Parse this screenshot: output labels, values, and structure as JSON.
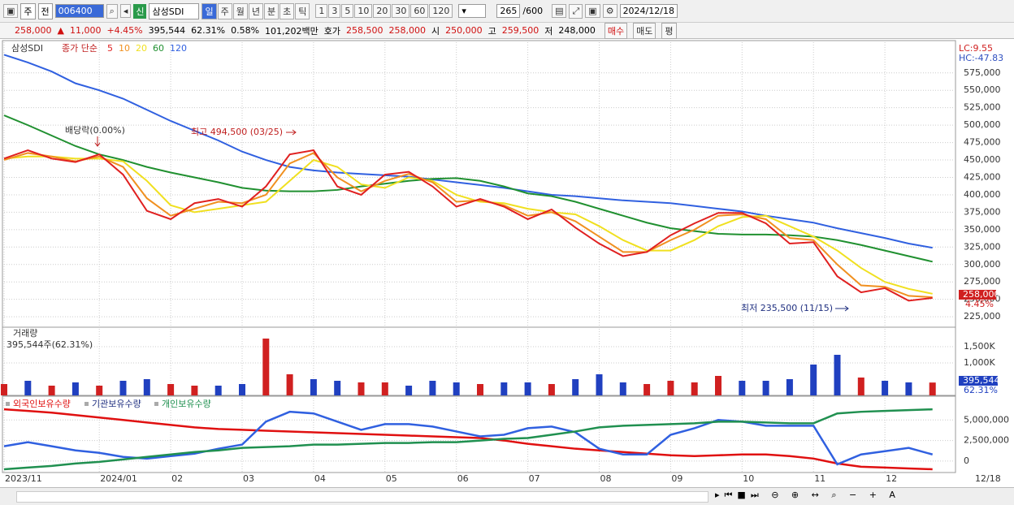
{
  "toolbar": {
    "type_a": "주",
    "type_b": "전",
    "code": "006400",
    "badge": "신",
    "name": "삼성SDI",
    "periods": [
      "일",
      "주",
      "월",
      "년",
      "분",
      "초",
      "틱"
    ],
    "steps": [
      "1",
      "3",
      "5",
      "10",
      "20",
      "30",
      "60",
      "120"
    ],
    "count": "265",
    "total": "/600",
    "date": "2024/12/18"
  },
  "quote": [
    "258,000",
    "▲",
    "11,000",
    "+4.45%",
    "395,544",
    "62.31%",
    "0.58%",
    "101,202백만",
    "호가",
    "258,500",
    "258,000",
    "시",
    "250,000",
    "고",
    "259,500",
    "저",
    "248,000"
  ],
  "buttons": [
    "매수",
    "매도",
    "평"
  ],
  "chart_data": [
    {
      "type": "line",
      "name": "삼성SDI",
      "legend_title": "종가 단순",
      "annotations": [
        "배당락(0.00%)",
        "최고 494,500 (03/25)",
        "최저 235,500 (11/15)"
      ],
      "right_labels": [
        "LC:9.55",
        "HC:-47.83"
      ],
      "last_label": "258,000",
      "last_change": "4.45%",
      "ylim": [
        210000,
        619000
      ],
      "grid": true,
      "yticks": [
        {
          "value": 225000,
          "label": "225,000"
        },
        {
          "value": 250000,
          "label": "250,000"
        },
        {
          "value": 275000,
          "label": "275,000"
        },
        {
          "value": 300000,
          "label": "300,000"
        },
        {
          "value": 325000,
          "label": "325,000"
        },
        {
          "value": 350000,
          "label": "350,000"
        },
        {
          "value": 375000,
          "label": "375,000"
        },
        {
          "value": 400000,
          "label": "400,000"
        },
        {
          "value": 425000,
          "label": "425,000"
        },
        {
          "value": 450000,
          "label": "450,000"
        },
        {
          "value": 475000,
          "label": "475,000"
        },
        {
          "value": 500000,
          "label": "500,000"
        },
        {
          "value": 525000,
          "label": "525,000"
        },
        {
          "value": 550000,
          "label": "550,000"
        },
        {
          "value": 575000,
          "label": "575,000"
        }
      ],
      "series": [
        {
          "name": "120",
          "color": "#3060e0",
          "values": [
            601000,
            590000,
            577000,
            560000,
            550000,
            538000,
            522000,
            506000,
            492000,
            478000,
            462000,
            450000,
            440000,
            435000,
            432000,
            430000,
            428000,
            426000,
            422000,
            418000,
            414000,
            410000,
            405000,
            400000,
            398000,
            395000,
            392000,
            390000,
            388000,
            384000,
            380000,
            376000,
            370000,
            365000,
            360000,
            352000,
            345000,
            338000,
            330000,
            324000
          ]
        },
        {
          "name": "60",
          "color": "#209030",
          "values": [
            514000,
            500000,
            485000,
            470000,
            458000,
            450000,
            440000,
            432000,
            425000,
            418000,
            410000,
            406000,
            405000,
            405000,
            407000,
            412000,
            416000,
            420000,
            423000,
            424000,
            420000,
            412000,
            402000,
            398000,
            390000,
            380000,
            370000,
            360000,
            352000,
            348000,
            344000,
            343000,
            343000,
            342000,
            340000,
            335000,
            328000,
            320000,
            312000,
            304000
          ]
        },
        {
          "name": "20",
          "color": "#f0e020",
          "values": [
            452000,
            455000,
            455000,
            452000,
            452000,
            448000,
            420000,
            385000,
            375000,
            380000,
            385000,
            390000,
            420000,
            450000,
            440000,
            415000,
            410000,
            425000,
            420000,
            400000,
            390000,
            388000,
            380000,
            375000,
            372000,
            355000,
            335000,
            320000,
            320000,
            335000,
            355000,
            368000,
            370000,
            355000,
            340000,
            320000,
            295000,
            275000,
            265000,
            258000
          ]
        },
        {
          "name": "10",
          "color": "#f09020",
          "values": [
            450000,
            460000,
            455000,
            448000,
            455000,
            440000,
            395000,
            370000,
            380000,
            390000,
            388000,
            400000,
            445000,
            460000,
            425000,
            405000,
            420000,
            430000,
            418000,
            390000,
            392000,
            385000,
            370000,
            375000,
            362000,
            340000,
            318000,
            318000,
            335000,
            350000,
            370000,
            372000,
            365000,
            338000,
            335000,
            300000,
            270000,
            268000,
            255000,
            253000
          ]
        },
        {
          "name": "5",
          "color": "#e02020",
          "values": [
            452000,
            464000,
            452000,
            447000,
            458000,
            429000,
            377000,
            365000,
            388000,
            394000,
            383000,
            412000,
            458000,
            464000,
            412000,
            400000,
            429000,
            433000,
            412000,
            383000,
            394000,
            383000,
            365000,
            379000,
            353000,
            330000,
            312000,
            318000,
            342000,
            359000,
            374000,
            374000,
            359000,
            330000,
            332000,
            283000,
            260000,
            266000,
            248000,
            252000
          ]
        }
      ]
    },
    {
      "type": "bar",
      "title": "거래량",
      "subtitle": "395,544주(62.31%)",
      "last_label": "395,544",
      "last_pct": "62.31%",
      "ylim": [
        0,
        2050000
      ],
      "grid": true,
      "yticks": [
        {
          "value": 1000000,
          "label": "1,000K"
        },
        {
          "value": 1500000,
          "label": "1,500K"
        }
      ],
      "colors": [
        "#d02020",
        "#2040c0",
        "#d02020",
        "#2040c0",
        "#d02020",
        "#2040c0",
        "#2040c0",
        "#d02020",
        "#d02020",
        "#2040c0",
        "#2040c0",
        "#d02020",
        "#d02020",
        "#2040c0",
        "#2040c0",
        "#d02020",
        "#d02020",
        "#2040c0",
        "#2040c0",
        "#2040c0",
        "#d02020",
        "#2040c0",
        "#2040c0",
        "#d02020",
        "#2040c0",
        "#2040c0",
        "#2040c0",
        "#d02020",
        "#d02020",
        "#d02020",
        "#d02020",
        "#2040c0",
        "#2040c0",
        "#2040c0",
        "#2040c0",
        "#2040c0",
        "#d02020",
        "#2040c0",
        "#2040c0",
        "#d02020"
      ],
      "values": [
        350000,
        450000,
        300000,
        400000,
        300000,
        450000,
        500000,
        350000,
        300000,
        300000,
        350000,
        1750000,
        650000,
        500000,
        450000,
        400000,
        400000,
        300000,
        450000,
        400000,
        350000,
        400000,
        400000,
        350000,
        500000,
        650000,
        400000,
        350000,
        450000,
        400000,
        600000,
        450000,
        450000,
        500000,
        950000,
        1250000,
        550000,
        450000,
        400000,
        395544
      ]
    },
    {
      "type": "line",
      "ylim": [
        -1400000,
        7700000
      ],
      "grid": true,
      "yticks": [
        0,
        {
          "value": 2500000,
          "label": "2,500,000"
        },
        {
          "value": 5000000,
          "label": "5,000,000"
        }
      ],
      "x_end_label": "12/18",
      "categories": [
        "2023/11",
        null,
        null,
        null,
        "2024/01",
        null,
        null,
        "02",
        null,
        null,
        "03",
        null,
        null,
        "04",
        null,
        null,
        "05",
        null,
        null,
        "06",
        null,
        null,
        "07",
        null,
        null,
        "08",
        null,
        null,
        "09",
        null,
        null,
        "10",
        null,
        null,
        "11",
        null,
        null,
        "12",
        null,
        null
      ],
      "series": [
        {
          "name": "외국인보유수량",
          "color": "#e01010",
          "values": [
            6300000,
            6100000,
            5900000,
            5600000,
            5300000,
            5000000,
            4700000,
            4400000,
            4100000,
            3900000,
            3800000,
            3700000,
            3600000,
            3500000,
            3400000,
            3300000,
            3200000,
            3100000,
            3000000,
            2900000,
            2800000,
            2500000,
            2100000,
            1800000,
            1500000,
            1300000,
            1100000,
            900000,
            700000,
            600000,
            700000,
            800000,
            800000,
            600000,
            300000,
            -300000,
            -700000,
            -800000,
            -900000,
            -1000000
          ]
        },
        {
          "name": "기관보유수량",
          "color": "#3060e0",
          "values": [
            1800000,
            2300000,
            1800000,
            1300000,
            1000000,
            500000,
            300000,
            600000,
            900000,
            1500000,
            2000000,
            4800000,
            6000000,
            5800000,
            4800000,
            3800000,
            4500000,
            4500000,
            4200000,
            3600000,
            3000000,
            3200000,
            4000000,
            4200000,
            3500000,
            1500000,
            800000,
            800000,
            3200000,
            4000000,
            5000000,
            4800000,
            4300000,
            4300000,
            4300000,
            -400000,
            800000,
            1200000,
            1600000,
            800000
          ]
        },
        {
          "name": "개인보유수량",
          "color": "#209050",
          "values": [
            -1000000,
            -800000,
            -600000,
            -300000,
            -100000,
            200000,
            500000,
            800000,
            1100000,
            1300000,
            1600000,
            1700000,
            1800000,
            2000000,
            2000000,
            2100000,
            2200000,
            2200000,
            2300000,
            2300000,
            2500000,
            2700000,
            2800000,
            3200000,
            3600000,
            4100000,
            4300000,
            4400000,
            4500000,
            4600000,
            4800000,
            4800000,
            4700000,
            4600000,
            4600000,
            5800000,
            6000000,
            6100000,
            6200000,
            6300000
          ]
        }
      ]
    }
  ]
}
